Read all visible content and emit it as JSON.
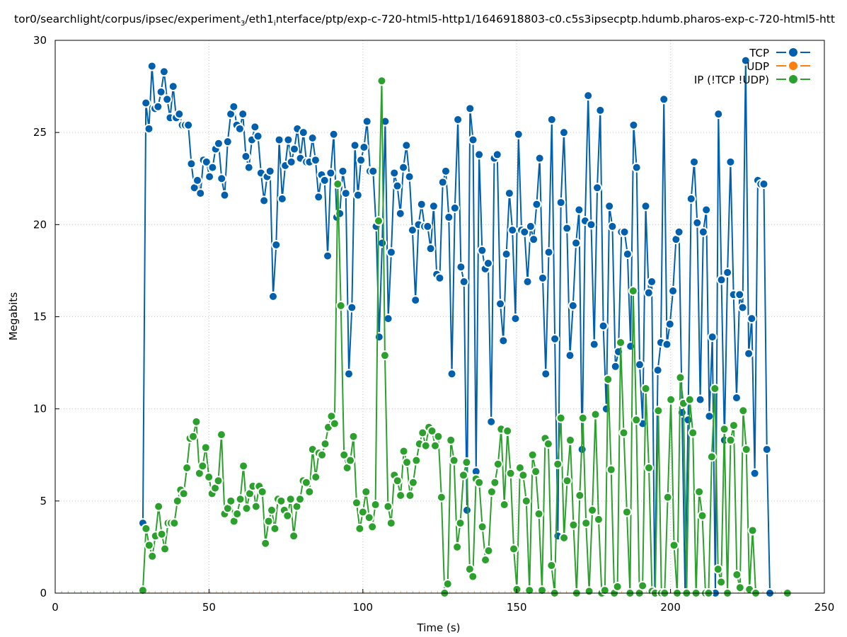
{
  "chart_data": {
    "type": "line",
    "title_parts": [
      "tor0/searchlight/corpus/ipsec/experiment",
      "3",
      "/eth1",
      "i",
      "nterface/ptp/exp-c-720-html5-http1/1646918803-c0.c5s3ipsecptp.hdumb.pharos-exp-c-720-html5-htt"
    ],
    "xlabel": "Time (s)",
    "ylabel": "Megabits",
    "xlim": [
      0,
      250
    ],
    "ylim": [
      0,
      30
    ],
    "xticks": [
      "0",
      "50",
      "100",
      "150",
      "200",
      "250"
    ],
    "yticks": [
      "0",
      "5",
      "10",
      "15",
      "20",
      "25",
      "30"
    ],
    "grid": true,
    "legend_placement": "top-right",
    "series": [
      {
        "name": "TCP",
        "color": "#0060ad",
        "x_start": 28.5,
        "x_end": 232.3,
        "values": [
          3.8,
          26.6,
          25.2,
          28.6,
          26.3,
          26.4,
          27.2,
          28.3,
          26.8,
          25.8,
          27.5,
          25.8,
          26.0,
          25.4,
          25.4,
          25.4,
          23.3,
          22.0,
          22.4,
          21.7,
          23.5,
          23.4,
          22.6,
          23.1,
          24.1,
          24.4,
          22.5,
          21.6,
          24.5,
          26.0,
          26.4,
          25.4,
          25.2,
          26.0,
          23.7,
          23.1,
          24.6,
          25.3,
          24.8,
          22.8,
          21.3,
          22.6,
          22.9,
          16.1,
          18.9,
          24.6,
          21.4,
          23.2,
          24.6,
          23.4,
          24.1,
          25.2,
          23.6,
          25.0,
          23.4,
          23.4,
          24.7,
          23.5,
          21.5,
          22.7,
          22.4,
          18.3,
          22.8,
          24.9,
          20.4,
          20.6,
          22.9,
          21.7,
          11.9,
          15.5,
          24.3,
          21.6,
          23.5,
          24.2,
          25.6,
          22.9,
          22.9,
          19.9,
          13.9,
          19.0,
          25.6,
          14.9,
          18.5,
          22.8,
          22.1,
          20.6,
          23.1,
          24.3,
          22.6,
          19.7,
          15.9,
          20.0,
          21.1,
          19.9,
          19.9,
          18.7,
          21.0,
          17.3,
          17.1,
          22.3,
          22.9,
          20.4,
          11.9,
          20.9,
          25.7,
          17.7,
          16.9,
          4.5,
          26.3,
          24.6,
          6.6,
          23.8,
          18.6,
          17.6,
          17.9,
          9.3,
          23.6,
          23.8,
          15.7,
          13.7,
          18.4,
          21.7,
          19.7,
          14.9,
          24.9,
          19.7,
          19.6,
          16.9,
          19.9,
          19.2,
          21.1,
          23.6,
          17.1,
          11.9,
          18.5,
          25.7,
          13.8,
          3.1,
          21.2,
          25.0,
          19.8,
          12.9,
          15.6,
          19.0,
          20.8,
          7.8,
          20.2,
          27.0,
          20.0,
          13.5,
          22.0,
          26.2,
          14.5,
          10.0,
          21.0,
          19.9,
          12.3,
          13.1,
          19.6,
          19.6,
          18.4,
          13.4,
          25.4,
          23.1,
          12.4,
          9.2,
          21.0,
          16.3,
          16.9,
          0,
          12.1,
          13.6,
          26.8,
          13.5,
          14.6,
          16.4,
          19.2,
          19.6,
          9.8,
          0,
          9.4,
          21.4,
          23.4,
          20.1,
          10.5,
          19.6,
          20.8,
          9.6,
          13.9,
          0,
          26.0,
          17.0,
          8.3,
          17.4,
          23.4,
          16.2,
          10.6,
          16.2,
          15.5,
          28.9,
          13.0,
          14.9,
          6.5,
          22.4,
          22.2,
          22.2,
          7.8,
          0
        ]
      },
      {
        "name": "UDP",
        "color": "#ff7f0e",
        "x_start": 28.5,
        "x_end": 238.0,
        "values": [
          0,
          0,
          0,
          0,
          0,
          0,
          0,
          0,
          0,
          0,
          0,
          0,
          0,
          0,
          0,
          0,
          0,
          0,
          0,
          0,
          0,
          0,
          0,
          0,
          0,
          0,
          0,
          0,
          0,
          0,
          0,
          0,
          0,
          0,
          0,
          0,
          0,
          0,
          0,
          0,
          0,
          0,
          0,
          0,
          0,
          0,
          0,
          0,
          0,
          0,
          0,
          0,
          0,
          0,
          0,
          0,
          0,
          0,
          0,
          0,
          0,
          0,
          0,
          0,
          0,
          0,
          0,
          0,
          0,
          0,
          0,
          0,
          0,
          0,
          0,
          0,
          0,
          0,
          0,
          0,
          0,
          0,
          0,
          0,
          0,
          0,
          0,
          0,
          0,
          0,
          0,
          0,
          0,
          0,
          0,
          0,
          0,
          0,
          0,
          0,
          0,
          0,
          0,
          0,
          0,
          0
        ]
      },
      {
        "name": "IP (!TCP  !UDP)",
        "color": "#2ca02c",
        "x_start": 28.5,
        "x_end": 227.7,
        "values": [
          0.15,
          3.5,
          2.6,
          2.0,
          3.1,
          4.7,
          3.2,
          2.4,
          3.8,
          3.8,
          3.8,
          5.0,
          5.6,
          5.4,
          6.8,
          8.4,
          8.5,
          9.3,
          6.5,
          6.9,
          7.9,
          6.3,
          5.4,
          5.7,
          6.1,
          8.6,
          4.3,
          4.6,
          5.0,
          3.9,
          4.3,
          5.1,
          6.9,
          4.6,
          5.4,
          5.8,
          4.7,
          5.8,
          5.5,
          2.7,
          3.9,
          4.5,
          3.5,
          5.1,
          5.0,
          4.5,
          4.2,
          5.1,
          3.1,
          4.7,
          5.1,
          6.1,
          6.0,
          5.5,
          7.8,
          6.3,
          7.6,
          7.5,
          8.1,
          9.0,
          9.6,
          9.2,
          22.2,
          15.6,
          7.5,
          6.8,
          7.2,
          8.5,
          4.9,
          3.5,
          4.4,
          5.5,
          4.1,
          3.6,
          4.8,
          20.2,
          27.8,
          12.9,
          4.7,
          3.8,
          6.4,
          6.1,
          5.3,
          7.7,
          7.1,
          5.3,
          6.0,
          7.2,
          8.1,
          8.7,
          8.0,
          9.0,
          8.8,
          8.0,
          8.5,
          5.2,
          0,
          0.5,
          8.3,
          7.2,
          2.5,
          3.8,
          6.4,
          7.1,
          1.3,
          0.9,
          6.2,
          6.0,
          3.6,
          1.8,
          2.3,
          5.5,
          6.0,
          7.0,
          8.9,
          4.8,
          8.8,
          6.5,
          2.4,
          0.2,
          6.8,
          6.4,
          5.0,
          0.15,
          7.5,
          6.6,
          4.3,
          0.15,
          8.4,
          8.1,
          1.5,
          0,
          7.0,
          9.5,
          3.0,
          6.1,
          8.3,
          3.7,
          0,
          5.3,
          9.5,
          3.8,
          0.1,
          4.5,
          9.7,
          4.0,
          0,
          0.15,
          11.6,
          6.7,
          0,
          0.35,
          13.6,
          8.7,
          4.4,
          0,
          16.4,
          9.4,
          0,
          0.4,
          11.1,
          6.8,
          0.1,
          0,
          9.9,
          0,
          0,
          5.2,
          10.5,
          2.6,
          0,
          11.7,
          10.3,
          0,
          10.5,
          8.7,
          0,
          5.5,
          4.2,
          0,
          0,
          7.4,
          11.1,
          1.3,
          0.6,
          8.9,
          0,
          8.3,
          9.1,
          1.0,
          0.3,
          9.9,
          7.8,
          0.2,
          3.4,
          0
        ],
        "extra_points": [
          [
            238.0,
            0
          ]
        ]
      }
    ]
  }
}
